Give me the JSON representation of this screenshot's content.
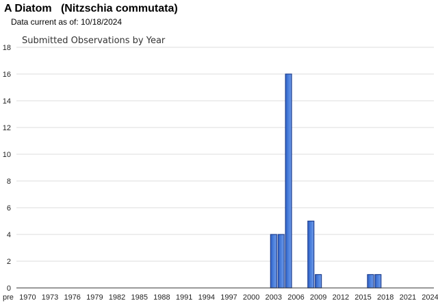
{
  "header": {
    "title": "A Diatom   (Nitzschia commutata)",
    "subtitle": "Data current as of: 10/18/2024"
  },
  "colors": {
    "bar_fill": "#4a7fdc",
    "bar_stroke": "#1f3f8f",
    "grid": "#dddddd",
    "axis": "#333333"
  },
  "chart_data": {
    "type": "bar",
    "title": "Submitted Observations by Year",
    "xlabel": "",
    "ylabel": "",
    "ylim": [
      0,
      18
    ],
    "yticks": [
      0,
      2,
      4,
      6,
      8,
      10,
      12,
      14,
      16,
      18
    ],
    "grid": true,
    "legend": "none",
    "categories": [
      "pre 1970",
      "1970",
      "1971",
      "1972",
      "1973",
      "1974",
      "1975",
      "1976",
      "1977",
      "1978",
      "1979",
      "1980",
      "1981",
      "1982",
      "1983",
      "1984",
      "1985",
      "1986",
      "1987",
      "1988",
      "1989",
      "1990",
      "1991",
      "1992",
      "1993",
      "1994",
      "1995",
      "1996",
      "1997",
      "1998",
      "1999",
      "2000",
      "2001",
      "2002",
      "2003",
      "2004",
      "2005",
      "2006",
      "2007",
      "2008",
      "2009",
      "2010",
      "2011",
      "2012",
      "2013",
      "2014",
      "2015",
      "2016",
      "2017",
      "2018",
      "2019",
      "2020",
      "2021",
      "2022",
      "2023",
      "2024"
    ],
    "values": [
      0,
      0,
      0,
      0,
      0,
      0,
      0,
      0,
      0,
      0,
      0,
      0,
      0,
      0,
      0,
      0,
      0,
      0,
      0,
      0,
      0,
      0,
      0,
      0,
      0,
      0,
      0,
      0,
      0,
      0,
      0,
      0,
      0,
      0,
      4,
      4,
      16,
      0,
      0,
      5,
      1,
      0,
      0,
      0,
      0,
      0,
      0,
      1,
      1,
      0,
      0,
      0,
      0,
      0,
      0,
      0
    ],
    "xtick_labels": [
      "pre",
      "1970",
      "1973",
      "1976",
      "1979",
      "1982",
      "1985",
      "1988",
      "1991",
      "1994",
      "1997",
      "2000",
      "2003",
      "2006",
      "2009",
      "2012",
      "2015",
      "2018",
      "2021",
      "2024"
    ]
  }
}
